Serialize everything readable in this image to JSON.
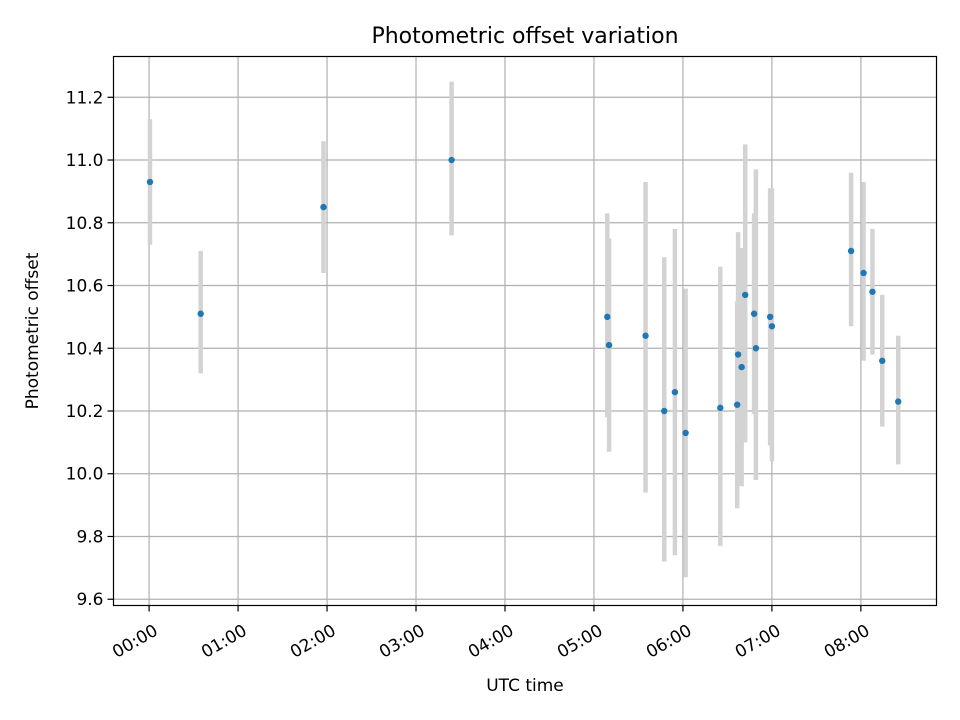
{
  "chart_data": {
    "type": "scatter",
    "title": "Photometric offset variation",
    "xlabel": "UTC time",
    "ylabel": "Photometric offset",
    "x_unit": "hours since 00:00 UTC",
    "xlim": [
      -0.4,
      8.85
    ],
    "ylim": [
      9.58,
      11.33
    ],
    "grid": true,
    "x_ticks": [
      {
        "value": 0,
        "label": "00:00"
      },
      {
        "value": 1,
        "label": "01:00"
      },
      {
        "value": 2,
        "label": "02:00"
      },
      {
        "value": 3,
        "label": "03:00"
      },
      {
        "value": 4,
        "label": "04:00"
      },
      {
        "value": 5,
        "label": "05:00"
      },
      {
        "value": 6,
        "label": "06:00"
      },
      {
        "value": 7,
        "label": "07:00"
      },
      {
        "value": 8,
        "label": "08:00"
      }
    ],
    "y_ticks": [
      {
        "value": 9.6,
        "label": "9.6"
      },
      {
        "value": 9.8,
        "label": "9.8"
      },
      {
        "value": 10.0,
        "label": "10.0"
      },
      {
        "value": 10.2,
        "label": "10.2"
      },
      {
        "value": 10.4,
        "label": "10.4"
      },
      {
        "value": 10.6,
        "label": "10.6"
      },
      {
        "value": 10.8,
        "label": "10.8"
      },
      {
        "value": 11.0,
        "label": "11.0"
      },
      {
        "value": 11.2,
        "label": "11.2"
      }
    ],
    "marker_color": "#1f77b4",
    "errorbar_color": "#d3d3d3",
    "points": [
      {
        "x": 0.01,
        "y": 10.93,
        "ylo": 10.73,
        "yhi": 11.13
      },
      {
        "x": 0.58,
        "y": 10.51,
        "ylo": 10.32,
        "yhi": 10.71
      },
      {
        "x": 1.96,
        "y": 10.85,
        "ylo": 10.64,
        "yhi": 11.06
      },
      {
        "x": 3.4,
        "y": 11.0,
        "ylo": 10.76,
        "yhi": 11.25
      },
      {
        "x": 5.15,
        "y": 10.5,
        "ylo": 10.18,
        "yhi": 10.83
      },
      {
        "x": 5.17,
        "y": 10.41,
        "ylo": 10.07,
        "yhi": 10.75
      },
      {
        "x": 5.58,
        "y": 10.44,
        "ylo": 9.94,
        "yhi": 10.93
      },
      {
        "x": 5.79,
        "y": 10.2,
        "ylo": 9.72,
        "yhi": 10.69
      },
      {
        "x": 5.91,
        "y": 10.26,
        "ylo": 9.74,
        "yhi": 10.78
      },
      {
        "x": 6.03,
        "y": 10.13,
        "ylo": 9.67,
        "yhi": 10.59
      },
      {
        "x": 6.42,
        "y": 10.21,
        "ylo": 9.77,
        "yhi": 10.66
      },
      {
        "x": 6.61,
        "y": 10.22,
        "ylo": 9.89,
        "yhi": 10.55
      },
      {
        "x": 6.62,
        "y": 10.38,
        "ylo": 10.0,
        "yhi": 10.77
      },
      {
        "x": 6.66,
        "y": 10.34,
        "ylo": 9.96,
        "yhi": 10.72
      },
      {
        "x": 6.7,
        "y": 10.57,
        "ylo": 10.1,
        "yhi": 11.05
      },
      {
        "x": 6.8,
        "y": 10.51,
        "ylo": 10.19,
        "yhi": 10.83
      },
      {
        "x": 6.82,
        "y": 10.4,
        "ylo": 9.98,
        "yhi": 10.97
      },
      {
        "x": 6.98,
        "y": 10.5,
        "ylo": 10.09,
        "yhi": 10.91
      },
      {
        "x": 7.0,
        "y": 10.47,
        "ylo": 10.04,
        "yhi": 10.91
      },
      {
        "x": 7.89,
        "y": 10.71,
        "ylo": 10.47,
        "yhi": 10.96
      },
      {
        "x": 8.03,
        "y": 10.64,
        "ylo": 10.36,
        "yhi": 10.93
      },
      {
        "x": 8.13,
        "y": 10.58,
        "ylo": 10.38,
        "yhi": 10.78
      },
      {
        "x": 8.24,
        "y": 10.36,
        "ylo": 10.15,
        "yhi": 10.57
      },
      {
        "x": 8.42,
        "y": 10.23,
        "ylo": 10.03,
        "yhi": 10.44
      }
    ]
  }
}
